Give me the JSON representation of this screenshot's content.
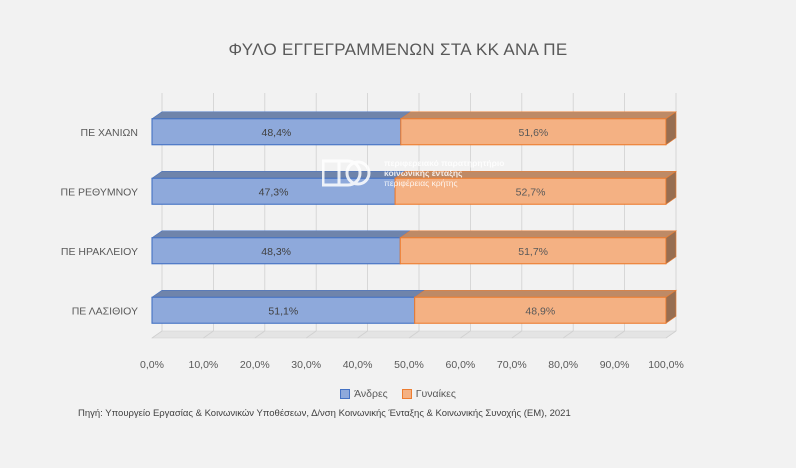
{
  "chart_data": {
    "type": "bar",
    "orientation": "horizontal",
    "stacked": "100%",
    "title": "ΦΥΛΟ ΕΓΓΕΓΡΑΜΜΕΝΩΝ ΣΤΑ ΚΚ ΑΝΑ ΠΕ",
    "categories": [
      "ΠΕ ΧΑΝΙΩΝ",
      "ΠΕ ΡΕΘΥΜΝΟΥ",
      "ΠΕ ΗΡΑΚΛΕΙΟΥ",
      "ΠΕ ΛΑΣΙΘΙΟΥ"
    ],
    "series": [
      {
        "name": "Άνδρες",
        "values": [
          48.4,
          47.3,
          48.3,
          51.1
        ],
        "labels": [
          "48,4%",
          "47,3%",
          "48,3%",
          "51,1%"
        ],
        "color": "#8ea9db"
      },
      {
        "name": "Γυναίκες",
        "values": [
          51.6,
          52.7,
          51.7,
          48.9
        ],
        "labels": [
          "51,6%",
          "52,7%",
          "51,7%",
          "48,9%"
        ],
        "color": "#f4b183"
      }
    ],
    "xlim": [
      0,
      100
    ],
    "x_ticks": [
      "0,0%",
      "10,0%",
      "20,0%",
      "30,0%",
      "40,0%",
      "50,0%",
      "60,0%",
      "70,0%",
      "80,0%",
      "90,0%",
      "100,0%"
    ],
    "grid": true,
    "legend_position": "bottom"
  },
  "source": "Πηγή: Υπουργείο Εργασίας & Κοινωνικών Υποθέσεων, Δ/νση Κοινωνικής Ένταξης & Κοινωνικής Συνοχής (ΕΜ), 2021",
  "watermark": {
    "line1": "περιφερειακό παρατηρητήριο",
    "line2": "κοινωνικής ένταξης",
    "line3": "περιφέρειας κρήτης"
  }
}
